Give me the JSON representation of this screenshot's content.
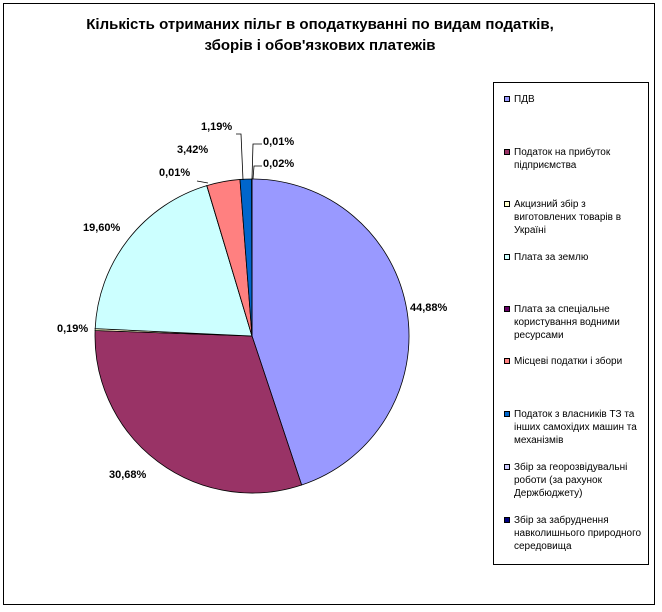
{
  "chart_data": {
    "type": "pie",
    "title_lines": [
      "Кількість отриманих пільг в оподаткуванні по видам податків,",
      "зборів і обов'язкових платежів"
    ],
    "legend_position": "right",
    "slices": [
      {
        "name": "ПДВ",
        "value": 44.88,
        "label": "44,88%",
        "color": "#9999FF"
      },
      {
        "name": "Податок на прибуток підприємства",
        "value": 30.68,
        "label": "30,68%",
        "color": "#993366"
      },
      {
        "name": "Акцизний збір з виготовлених товарів в Україні",
        "value": 0.19,
        "label": "0,19%",
        "color": "#FFFFCC"
      },
      {
        "name": "Плата за землю",
        "value": 19.6,
        "label": "19,60%",
        "color": "#CCFFFF"
      },
      {
        "name": "Плата за спеціальне користування водними ресурсами",
        "value": 0.01,
        "label": "0,01%",
        "color": "#660066"
      },
      {
        "name": "Місцеві податки і збори",
        "value": 3.42,
        "label": "3,42%",
        "color": "#FF8080"
      },
      {
        "name": "Податок з власників ТЗ та інших самохідих машин та механізмів",
        "value": 1.19,
        "label": "1,19%",
        "color": "#0066CC"
      },
      {
        "name": "Збір за георозвідувальні роботи (за рахунок Держбюджету)",
        "value": 0.01,
        "label": "0,01%",
        "color": "#CCCCFF"
      },
      {
        "name": "Збір за забруднення навколишнього природного середовища",
        "value": 0.02,
        "label": "0,02%",
        "color": "#000080"
      }
    ]
  }
}
